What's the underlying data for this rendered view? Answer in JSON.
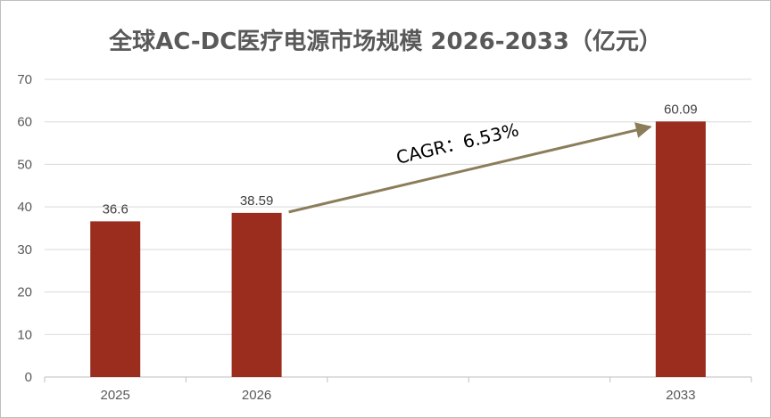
{
  "chart_data": {
    "type": "bar",
    "title": "全球AC-DC医疗电源市场规模 2026-2033（亿元）",
    "categories": [
      "2025",
      "2026",
      "",
      "",
      "2033"
    ],
    "values": [
      36.6,
      38.59,
      null,
      null,
      60.09
    ],
    "data_labels": [
      "36.6",
      "38.59",
      "",
      "",
      "60.09"
    ],
    "ylim": [
      0,
      70
    ],
    "yticks": [
      0,
      10,
      20,
      30,
      40,
      50,
      60,
      70
    ],
    "xlabel": "",
    "ylabel": "",
    "grid": true,
    "legend": "none",
    "bar_color": "#9b2d1f",
    "annotation": {
      "text": "CAGR：6.53%",
      "arrow_from_category": "2026",
      "arrow_to_category": "2033",
      "arrow_color": "#8b7d5a"
    }
  }
}
